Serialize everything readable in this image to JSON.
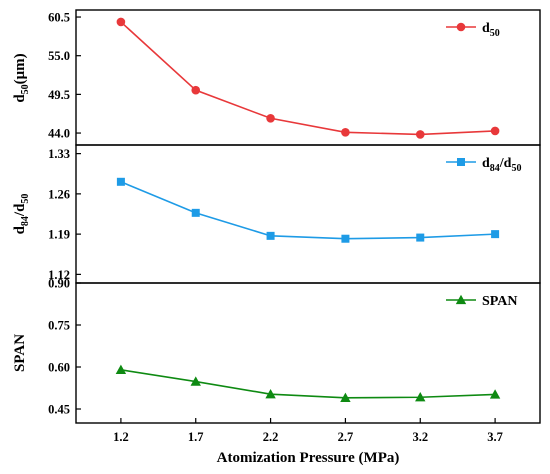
{
  "chart_data": {
    "type": "line",
    "shared_x": {
      "values": [
        1.2,
        1.7,
        2.2,
        2.7,
        3.2,
        3.7
      ],
      "tick_labels": [
        "1.2",
        "1.7",
        "2.2",
        "2.7",
        "3.2",
        "3.7"
      ],
      "xlabel": "Atomization Pressure (MPa)",
      "xlim": [
        0.9,
        4.0
      ]
    },
    "panels": [
      {
        "ylabel": "d50(μm)",
        "ylabel_main": "d",
        "ylabel_sub": "50",
        "ylabel_rest": "(μm)",
        "ylim": [
          42.3,
          61.5
        ],
        "yticks": [
          "60.5",
          "55.0",
          "49.5",
          "44.0"
        ],
        "series": [
          {
            "name": "d50",
            "name_main": "d",
            "name_sub": "50",
            "color": "#e8383a",
            "marker": "circle",
            "values": [
              59.8,
              50.1,
              46.1,
              44.1,
              43.8,
              44.3
            ]
          }
        ]
      },
      {
        "ylabel": "d84/d50",
        "ylim": [
          1.105,
          1.345
        ],
        "yticks": [
          "1.33",
          "1.26",
          "1.19",
          "1.12"
        ],
        "series": [
          {
            "name": "d84/d50",
            "color": "#1e9be6",
            "marker": "square",
            "values": [
              1.281,
              1.227,
              1.187,
              1.182,
              1.184,
              1.19
            ]
          }
        ]
      },
      {
        "ylabel": "SPAN",
        "ylim": [
          0.4,
          0.9
        ],
        "yticks": [
          "0.90",
          "0.75",
          "0.60",
          "0.45"
        ],
        "series": [
          {
            "name": "SPAN",
            "color": "#0e8a12",
            "marker": "triangle",
            "values": [
              0.59,
              0.548,
              0.503,
              0.49,
              0.492,
              0.502
            ]
          }
        ]
      }
    ],
    "grid": false,
    "legend_position": "top-right"
  }
}
